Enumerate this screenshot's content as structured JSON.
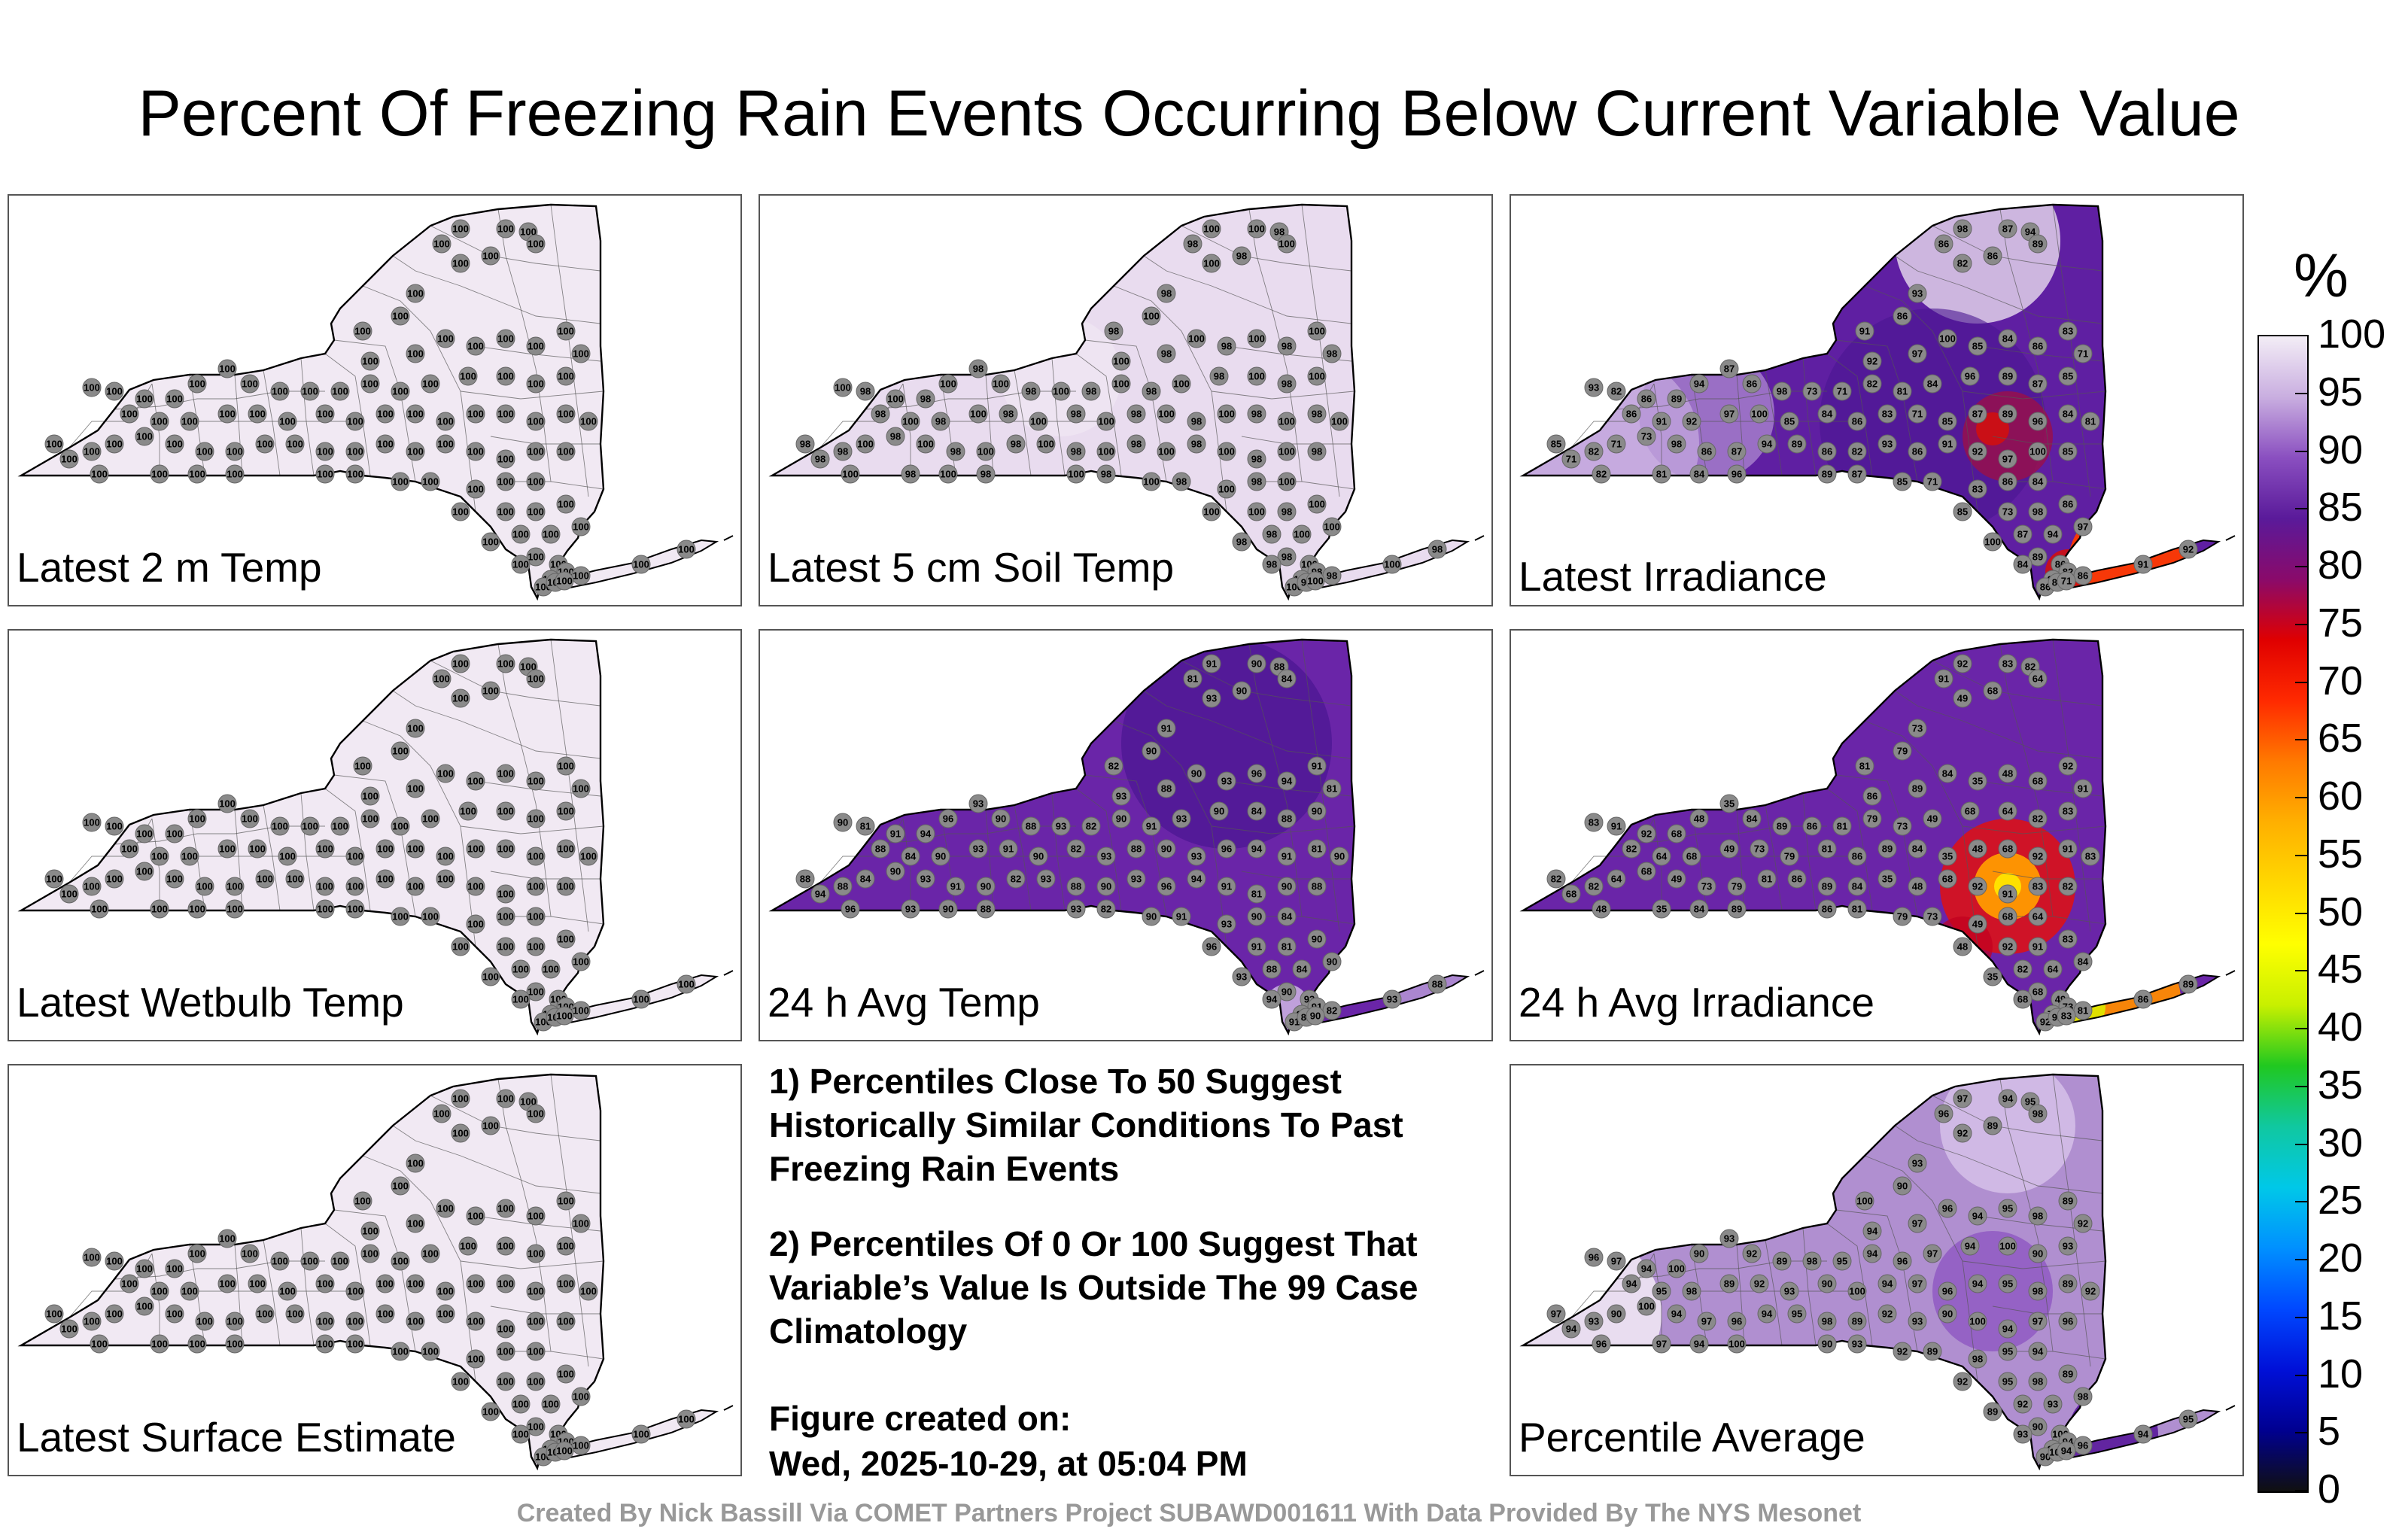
{
  "title": "Percent Of Freezing Rain Events Occurring Below Current Variable Value",
  "panels": [
    {
      "id": "p1",
      "label": "Latest 2 m Temp",
      "mode": "uniform",
      "fill": "#f1e9f3",
      "values": [
        100
      ]
    },
    {
      "id": "p2",
      "label": "Latest 5 cm Soil Temp",
      "mode": "uniform",
      "fill": "#e9dcef",
      "values": [
        100,
        98
      ]
    },
    {
      "id": "p3",
      "label": "Latest Irradiance",
      "mode": "irradiance",
      "fill": "#5f1fa2",
      "values": [
        98,
        86,
        87,
        94,
        89,
        86,
        82,
        93,
        86,
        91,
        92,
        97,
        100,
        85,
        84,
        86,
        83,
        71,
        85,
        87,
        89,
        96,
        84,
        81,
        82,
        71,
        73
      ]
    },
    {
      "id": "p4",
      "label": "Latest Wetbulb Temp",
      "mode": "uniform",
      "fill": "#f1e9f3",
      "values": [
        100
      ]
    },
    {
      "id": "p5",
      "label": "24 h Avg Temp",
      "mode": "avgtemp",
      "fill": "#6a25a8",
      "values": [
        91,
        81,
        90,
        88,
        84,
        90,
        93,
        91,
        90,
        82,
        93,
        88,
        90,
        93,
        96,
        94
      ]
    },
    {
      "id": "p6",
      "label": "24 h Avg Irradiance",
      "mode": "avgirr",
      "fill": "#6a25a8",
      "values": [
        92,
        91,
        83,
        82,
        64,
        68,
        49,
        73,
        79,
        81,
        86,
        89,
        84,
        35,
        48,
        68
      ]
    },
    {
      "id": "p7",
      "label": "Latest Surface Estimate",
      "mode": "uniform",
      "fill": "#f1e9f3",
      "values": [
        100
      ]
    },
    {
      "id": "p8",
      "label": "Percentile Average",
      "mode": "average",
      "fill": "#b08fd0",
      "values": [
        97,
        96,
        94,
        95,
        98,
        89,
        92,
        93,
        90,
        100,
        94
      ]
    }
  ],
  "notes": {
    "note1": "1) Percentiles Close To 50 Suggest Historically Similar Conditions To Past Freezing Rain Events",
    "note2": "2) Percentiles Of 0 Or 100 Suggest That Variable’s Value Is Outside The 99 Case Climatology",
    "created_label": "Figure created on:",
    "created_value": "Wed, 2025-10-29, at 05:04 PM"
  },
  "credit": "Created By Nick Bassill Via COMET Partners Project SUBAWD001611 With Data Provided By The NYS Mesonet",
  "colorbar": {
    "unit": "%",
    "ticks": [
      "100",
      "95",
      "90",
      "85",
      "80",
      "75",
      "70",
      "65",
      "60",
      "55",
      "50",
      "45",
      "40",
      "35",
      "30",
      "25",
      "20",
      "15",
      "10",
      "5",
      "0"
    ],
    "stops": [
      "#f3edf6",
      "#c9aee0",
      "#8a4fc0",
      "#5a1a9a",
      "#8a0a6a",
      "#e00000",
      "#ff2a00",
      "#ff7a00",
      "#ffb000",
      "#ffd800",
      "#ffff00",
      "#c8f000",
      "#20c820",
      "#10c8a0",
      "#00c8e8",
      "#0090ff",
      "#0048ff",
      "#0010d8",
      "#000090",
      "#101010"
    ]
  }
}
